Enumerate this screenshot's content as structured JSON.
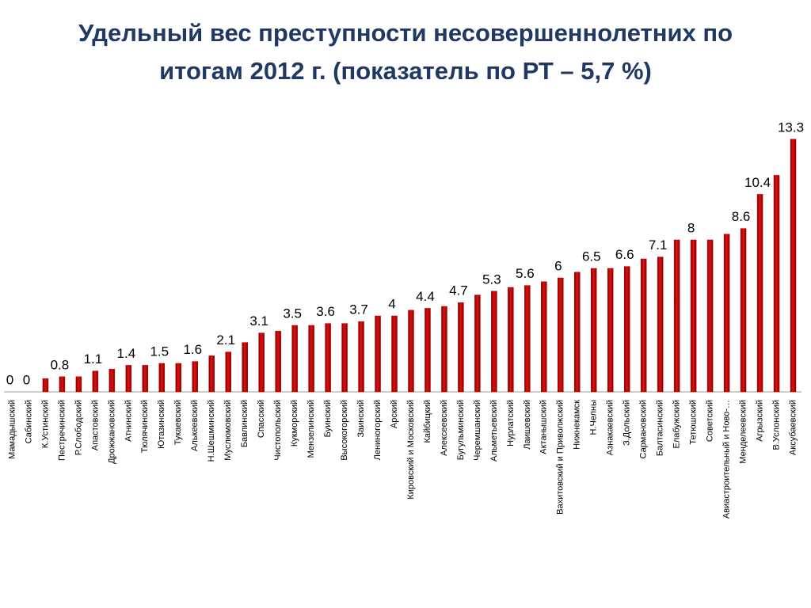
{
  "chart_data": {
    "type": "bar",
    "title": [
      "Удельный вес преступности несовершеннолетних по",
      "итогам 2012 г. (показатель по РТ – 5,7 %)"
    ],
    "categories": [
      "Мамадышский",
      "Сабинский",
      "К.Устинский",
      "Пестречинский",
      "Р.Слободский",
      "Апастовский",
      "Дрожжановский",
      "Атнинский",
      "Тюлячинский",
      "Ютазинский",
      "Тукаевский",
      "Алькеевский",
      "Н.Шешминский",
      "Муслюмовский",
      "Бавлинский",
      "Спасский",
      "Чистопольский",
      "Кукморский",
      "Мензелинский",
      "Буинский",
      "Высокогорский",
      "Заинский",
      "Лениногорский",
      "Арский",
      "Кировский и Московский",
      "Кайбицкий",
      "Алексеевский",
      "Бугульминский",
      "Черемшанский",
      "Альметьевский",
      "Нурлатский",
      "Лаишевский",
      "Актанышский",
      "Вахитовский и Приволжский",
      "Нижнекамск",
      "Н.Челны",
      "Азнакаевский",
      "З.Дольский",
      "Сармановский",
      "Балтасинский",
      "Елабужский",
      "Тетюшский",
      "Советский",
      "Авиастроительный и Ново-…",
      "Менделеевский",
      "Агрызский",
      "В.Услонский",
      "Аксубаевский"
    ],
    "values": [
      0,
      0,
      0.7,
      0.8,
      0.8,
      1.1,
      1.2,
      1.4,
      1.4,
      1.5,
      1.5,
      1.6,
      1.9,
      2.1,
      2.6,
      3.1,
      3.2,
      3.5,
      3.5,
      3.6,
      3.6,
      3.7,
      4.0,
      4,
      4.3,
      4.4,
      4.5,
      4.7,
      5.1,
      5.3,
      5.5,
      5.6,
      5.8,
      6,
      6.3,
      6.5,
      6.5,
      6.6,
      7.0,
      7.1,
      8.0,
      8,
      8.0,
      8.3,
      8.6,
      10.4,
      11.4,
      13.3
    ],
    "value_labels": [
      "0",
      "0",
      null,
      "0.8",
      null,
      "1.1",
      null,
      "1.4",
      null,
      "1.5",
      null,
      "1.6",
      null,
      "2.1",
      null,
      "3.1",
      null,
      "3.5",
      null,
      "3.6",
      null,
      "3.7",
      null,
      "4",
      null,
      "4.4",
      null,
      "4.7",
      null,
      "5.3",
      null,
      "5.6",
      null,
      "6",
      null,
      "6.5",
      null,
      "6.6",
      null,
      "7.1",
      null,
      "8",
      null,
      null,
      "8.6",
      "10.4",
      null,
      "13.3"
    ],
    "color": "#c00000",
    "ylim": [
      0,
      14
    ]
  }
}
